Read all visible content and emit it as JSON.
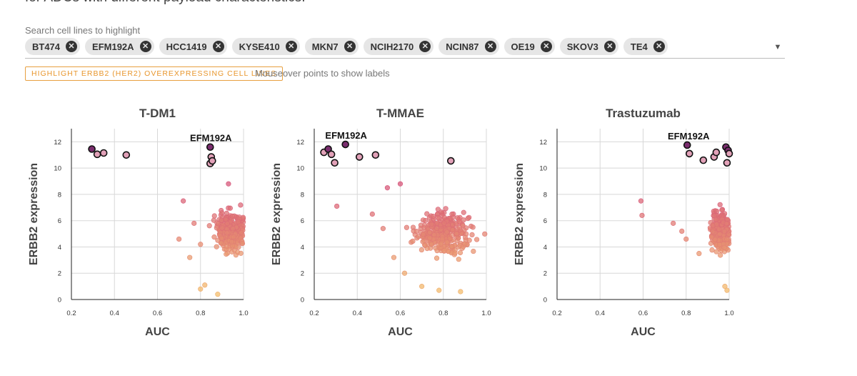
{
  "intro_text": "for ADCs with different payload characteristics.",
  "search": {
    "label": "Search cell lines to highlight",
    "chips": [
      "BT474",
      "EFM192A",
      "HCC1419",
      "KYSE410",
      "MKN7",
      "NCIH2170",
      "NCIN87",
      "OE19",
      "SKOV3",
      "TE4"
    ]
  },
  "highlight_button": "HIGHLIGHT ERBB2 (HER2) OVEREXPRESSING CELL LINES",
  "hint": "Mouseover points to show labels",
  "colors": {
    "highlight_fill": "#7a2d6e",
    "highlight_stroke": "#111111",
    "gradient_low": "#f5c46a",
    "gradient_high": "#d6557a",
    "accent_button": "#e8962c"
  },
  "chart_data": [
    {
      "type": "scatter",
      "title": "T-DM1",
      "xlabel": "AUC",
      "ylabel": "ERBB2 expression",
      "xlim": [
        0.2,
        1.0
      ],
      "ylim": [
        0,
        13
      ],
      "xticks": [
        "0.2",
        "0.4",
        "0.6",
        "0.8",
        "1.0"
      ],
      "yticks": [
        "0",
        "2",
        "4",
        "6",
        "8",
        "10",
        "12"
      ],
      "label_point": "EFM192A",
      "highlighted": [
        [
          0.295,
          11.45
        ],
        [
          0.32,
          11.05
        ],
        [
          0.35,
          11.15
        ],
        [
          0.455,
          11.0
        ],
        [
          0.845,
          11.6
        ],
        [
          0.85,
          10.85
        ],
        [
          0.845,
          10.35
        ],
        [
          0.855,
          10.55
        ]
      ],
      "cloud": {
        "x_center": 0.94,
        "x_spread": 0.07,
        "y_center": 5.2,
        "y_spread": 1.4,
        "n": 260,
        "seed": 3,
        "extra": [
          [
            0.72,
            7.5
          ],
          [
            0.77,
            5.8
          ],
          [
            0.7,
            4.6
          ],
          [
            0.8,
            4.2
          ],
          [
            0.75,
            3.2
          ],
          [
            0.8,
            0.8
          ],
          [
            0.82,
            1.1
          ],
          [
            0.88,
            0.4
          ],
          [
            0.93,
            8.8
          ]
        ]
      }
    },
    {
      "type": "scatter",
      "title": "T-MMAE",
      "xlabel": "AUC",
      "ylabel": "ERBB2 expression",
      "xlim": [
        0.2,
        1.0
      ],
      "ylim": [
        0,
        13
      ],
      "xticks": [
        "0.2",
        "0.4",
        "0.6",
        "0.8",
        "1.0"
      ],
      "yticks": [
        "0",
        "2",
        "4",
        "6",
        "8",
        "10",
        "12"
      ],
      "label_point": "EFM192A",
      "highlighted": [
        [
          0.245,
          11.2
        ],
        [
          0.265,
          11.45
        ],
        [
          0.28,
          11.05
        ],
        [
          0.295,
          10.4
        ],
        [
          0.345,
          11.8
        ],
        [
          0.41,
          10.85
        ],
        [
          0.485,
          11.0
        ],
        [
          0.835,
          10.55
        ]
      ],
      "cloud": {
        "x_center": 0.8,
        "x_spread": 0.12,
        "y_center": 5.0,
        "y_spread": 1.5,
        "n": 300,
        "seed": 7,
        "extra": [
          [
            0.305,
            7.1
          ],
          [
            0.47,
            6.5
          ],
          [
            0.54,
            8.5
          ],
          [
            0.6,
            8.8
          ],
          [
            0.52,
            5.4
          ],
          [
            0.57,
            3.2
          ],
          [
            0.62,
            2.0
          ],
          [
            0.7,
            1.0
          ],
          [
            0.78,
            0.7
          ],
          [
            0.88,
            0.6
          ]
        ]
      }
    },
    {
      "type": "scatter",
      "title": "Trastuzumab",
      "xlabel": "AUC",
      "ylabel": "ERBB2 expression",
      "xlim": [
        0.2,
        1.0
      ],
      "ylim": [
        0,
        13
      ],
      "xticks": [
        "0.2",
        "0.4",
        "0.6",
        "0.8",
        "1.0"
      ],
      "yticks": [
        "0",
        "2",
        "4",
        "6",
        "8",
        "10",
        "12"
      ],
      "label_point": "EFM192A",
      "highlighted": [
        [
          0.805,
          11.75
        ],
        [
          0.815,
          11.1
        ],
        [
          0.88,
          10.6
        ],
        [
          0.93,
          10.85
        ],
        [
          0.94,
          11.2
        ],
        [
          0.985,
          11.6
        ],
        [
          0.995,
          11.35
        ],
        [
          1.0,
          11.1
        ],
        [
          0.99,
          10.4
        ]
      ],
      "cloud": {
        "x_center": 0.96,
        "x_spread": 0.045,
        "y_center": 5.2,
        "y_spread": 1.4,
        "n": 260,
        "seed": 11,
        "extra": [
          [
            0.59,
            7.5
          ],
          [
            0.595,
            6.4
          ],
          [
            0.74,
            5.8
          ],
          [
            0.78,
            5.2
          ],
          [
            0.8,
            4.6
          ],
          [
            0.86,
            3.5
          ],
          [
            0.98,
            1.0
          ],
          [
            0.99,
            0.7
          ]
        ]
      }
    }
  ]
}
